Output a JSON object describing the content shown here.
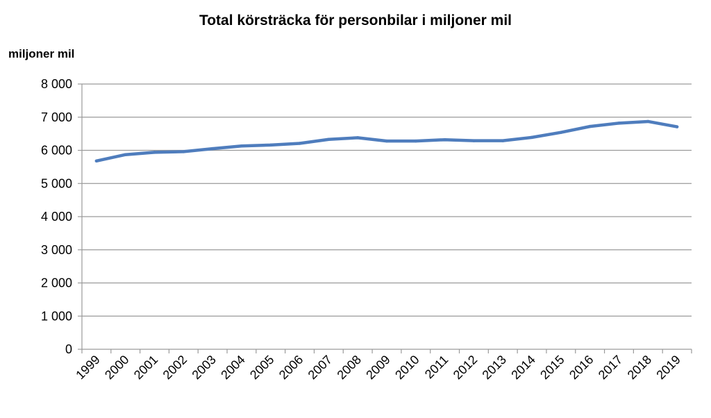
{
  "chart_data": {
    "type": "line",
    "title": "Total körsträcka för personbilar i miljoner mil",
    "ylabel": "miljoner mil",
    "xlabel": "",
    "ylim": [
      0,
      8000
    ],
    "yticks": [
      0,
      1000,
      2000,
      3000,
      4000,
      5000,
      6000,
      7000,
      8000
    ],
    "ytick_labels": [
      "0",
      "1 000",
      "2 000",
      "3 000",
      "4 000",
      "5 000",
      "6 000",
      "7 000",
      "8 000"
    ],
    "grid": true,
    "categories": [
      "1999",
      "2000",
      "2001",
      "2002",
      "2003",
      "2004",
      "2005",
      "2006",
      "2007",
      "2008",
      "2009",
      "2010",
      "2011",
      "2012",
      "2013",
      "2014",
      "2015",
      "2016",
      "2017",
      "2018",
      "2019"
    ],
    "series": [
      {
        "color": "#4f7dbd",
        "values": [
          5680,
          5870,
          5940,
          5960,
          6050,
          6130,
          6160,
          6210,
          6330,
          6380,
          6280,
          6280,
          6320,
          6290,
          6290,
          6390,
          6540,
          6720,
          6820,
          6870,
          6710
        ]
      }
    ]
  }
}
